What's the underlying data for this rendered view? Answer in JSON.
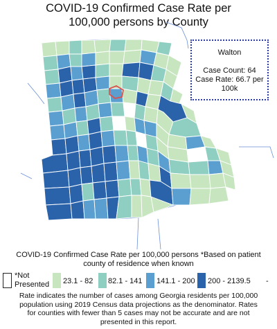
{
  "title": {
    "line1": "COVID-19 Confirmed Case Rate per",
    "line2": "100,000 persons by County"
  },
  "tooltip": {
    "county": "Walton",
    "case_count": "Case Count: 64",
    "case_rate_1": "Case Rate: 66.7 per",
    "case_rate_2": "100k",
    "border_color": "#2a3aa8"
  },
  "legend": {
    "title_1": "COVID-19 Confirmed Case Rate per 100,000 persons *Based on patient",
    "title_2": "county of residence when known",
    "not_presented_1": "*Not",
    "not_presented_2": "Presented",
    "bins": [
      {
        "label": "23.1 - 82",
        "color": "#c7e6c0"
      },
      {
        "label": "82.1 - 141",
        "color": "#8fcfc2"
      },
      {
        "label": "141.1 - 200",
        "color": "#5a9fd0"
      },
      {
        "label": "200 - 2139.5",
        "color": "#2b63ab"
      }
    ],
    "trailing": "-"
  },
  "note": {
    "line1": "Rate indicates the number of cases among Georgia residents per 100,000",
    "line2": "population using 2019 Census data projections as the denominator. Rates",
    "line3": "for counties with fewer than 5 cases may not be accurate and are not",
    "line4": "presented in this report."
  },
  "map_colors": {
    "c1": "#c7e6c0",
    "c2": "#8fcfc2",
    "c3": "#5a9fd0",
    "c4": "#2b63ab",
    "none": "#ffffff",
    "border": "#ffffff",
    "water": "#6a8fd8",
    "highlight": "#d9534f"
  }
}
